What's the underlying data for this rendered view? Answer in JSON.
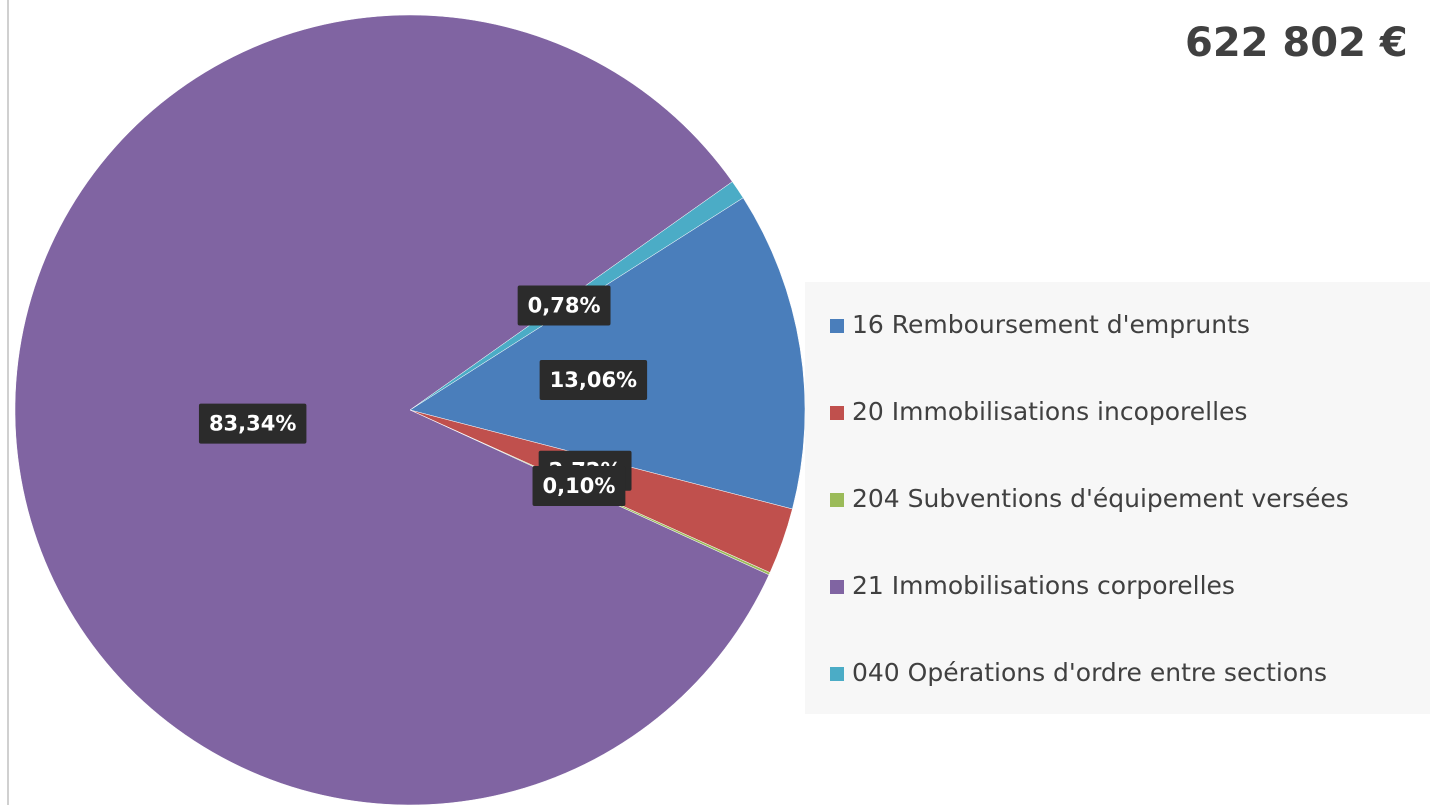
{
  "chart_data": {
    "type": "pie",
    "title": "622 802 €",
    "categories": [
      "16 Remboursement d'emprunts",
      "20 Immobilisations incoporelles",
      "204 Subventions d'équipement versées",
      "21 Immobilisations corporelles",
      "040 Opérations d'ordre entre sections"
    ],
    "values": [
      13.06,
      2.72,
      0.1,
      83.34,
      0.78
    ],
    "value_labels": [
      "13,06%",
      "2,72%",
      "0,10%",
      "83,34%",
      "0,78%"
    ],
    "colors": [
      "#4a7ebb",
      "#c0504d",
      "#9bbb59",
      "#8064a2",
      "#4bacc6"
    ],
    "legend": "right"
  }
}
